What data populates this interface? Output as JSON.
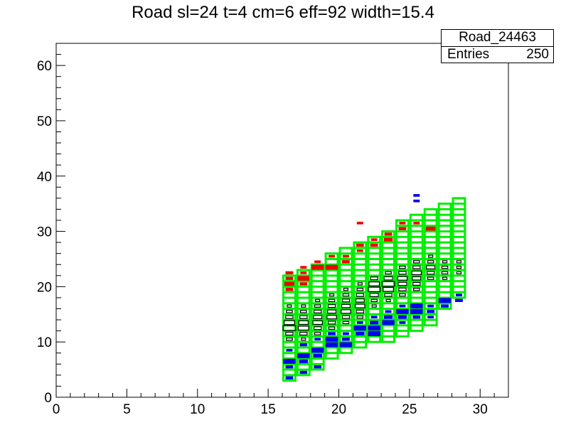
{
  "title": "Road sl=24 t=4 cm=6 eff=92 width=15.4",
  "stats": {
    "name": "Road_24463",
    "entries_label": "Entries",
    "entries_value": "250"
  },
  "colors": {
    "frame": "#000000",
    "road": "#00ee00",
    "hits": "#000000",
    "upper": "#ee0000",
    "lower": "#0000ee"
  },
  "chart_data": {
    "type": "heatmap",
    "title": "Road sl=24 t=4 cm=6 eff=92 width=15.4",
    "xlim": [
      0,
      32
    ],
    "ylim": [
      0,
      64
    ],
    "x_ticks": [
      0,
      5,
      10,
      15,
      20,
      25,
      30
    ],
    "y_ticks": [
      0,
      10,
      20,
      30,
      40,
      50,
      60
    ],
    "x_tick_labels": [
      "0",
      "5",
      "10",
      "15",
      "20",
      "25",
      "30"
    ],
    "y_tick_labels": [
      "0",
      "10",
      "20",
      "30",
      "40",
      "50",
      "60"
    ],
    "grid": false,
    "legend": "top-right stats box",
    "road_layers": [
      {
        "x": 16,
        "y_min": 3,
        "y_max": 22
      },
      {
        "x": 17,
        "y_min": 4,
        "y_max": 23
      },
      {
        "x": 18,
        "y_min": 5,
        "y_max": 24
      },
      {
        "x": 19,
        "y_min": 7,
        "y_max": 26
      },
      {
        "x": 20,
        "y_min": 8,
        "y_max": 27
      },
      {
        "x": 21,
        "y_min": 9,
        "y_max": 28
      },
      {
        "x": 22,
        "y_min": 10,
        "y_max": 29
      },
      {
        "x": 23,
        "y_min": 10,
        "y_max": 30
      },
      {
        "x": 24,
        "y_min": 11,
        "y_max": 32
      },
      {
        "x": 25,
        "y_min": 12,
        "y_max": 33
      },
      {
        "x": 26,
        "y_min": 13,
        "y_max": 34
      },
      {
        "x": 27,
        "y_min": 16,
        "y_max": 35
      },
      {
        "x": 28,
        "y_min": 18,
        "y_max": 36
      }
    ],
    "series": [
      {
        "color": "black",
        "values": [
          [
            16,
            12,
            9
          ],
          [
            16,
            13,
            6
          ],
          [
            16,
            14,
            3
          ],
          [
            16,
            11,
            3
          ],
          [
            16,
            15,
            2
          ],
          [
            16,
            10,
            2
          ],
          [
            16,
            16,
            1
          ],
          [
            17,
            12,
            6
          ],
          [
            17,
            13,
            5
          ],
          [
            17,
            14,
            3
          ],
          [
            17,
            11,
            3
          ],
          [
            17,
            15,
            2
          ],
          [
            17,
            10,
            1
          ],
          [
            17,
            16,
            1
          ],
          [
            18,
            13,
            5
          ],
          [
            18,
            14,
            4
          ],
          [
            18,
            12,
            3
          ],
          [
            18,
            15,
            3
          ],
          [
            18,
            16,
            2
          ],
          [
            18,
            11,
            2
          ],
          [
            18,
            17,
            1
          ],
          [
            19,
            14,
            5
          ],
          [
            19,
            15,
            4
          ],
          [
            19,
            13,
            3
          ],
          [
            19,
            16,
            3
          ],
          [
            19,
            17,
            2
          ],
          [
            19,
            12,
            2
          ],
          [
            19,
            18,
            1
          ],
          [
            20,
            15,
            5
          ],
          [
            20,
            16,
            4
          ],
          [
            20,
            14,
            3
          ],
          [
            20,
            17,
            3
          ],
          [
            20,
            18,
            2
          ],
          [
            20,
            13,
            2
          ],
          [
            20,
            19,
            1
          ],
          [
            21,
            16,
            5
          ],
          [
            21,
            17,
            4
          ],
          [
            21,
            15,
            3
          ],
          [
            21,
            18,
            3
          ],
          [
            21,
            19,
            2
          ],
          [
            21,
            14,
            2
          ],
          [
            21,
            20,
            1
          ],
          [
            22,
            19,
            8
          ],
          [
            22,
            20,
            6
          ],
          [
            22,
            18,
            4
          ],
          [
            22,
            21,
            3
          ],
          [
            22,
            17,
            2
          ],
          [
            22,
            16,
            1
          ],
          [
            23,
            20,
            9
          ],
          [
            23,
            19,
            6
          ],
          [
            23,
            21,
            4
          ],
          [
            23,
            18,
            3
          ],
          [
            23,
            22,
            2
          ],
          [
            23,
            17,
            1
          ],
          [
            24,
            21,
            5
          ],
          [
            24,
            20,
            4
          ],
          [
            24,
            22,
            3
          ],
          [
            24,
            19,
            3
          ],
          [
            24,
            23,
            2
          ],
          [
            24,
            18,
            2
          ],
          [
            25,
            22,
            5
          ],
          [
            25,
            21,
            4
          ],
          [
            25,
            23,
            3
          ],
          [
            25,
            20,
            3
          ],
          [
            25,
            24,
            2
          ],
          [
            25,
            19,
            2
          ],
          [
            26,
            23,
            4
          ],
          [
            26,
            22,
            3
          ],
          [
            26,
            24,
            2
          ],
          [
            26,
            21,
            2
          ],
          [
            26,
            25,
            1
          ],
          [
            27,
            22,
            2
          ],
          [
            27,
            23,
            2
          ],
          [
            27,
            24,
            1
          ],
          [
            27,
            21,
            1
          ],
          [
            28,
            23,
            1
          ],
          [
            28,
            24,
            1
          ],
          [
            28,
            22,
            1
          ]
        ]
      },
      {
        "color": "red",
        "values": [
          [
            16,
            22,
            3
          ],
          [
            16,
            21,
            3
          ],
          [
            16,
            20,
            5
          ],
          [
            16,
            19,
            3
          ],
          [
            17,
            23,
            2
          ],
          [
            17,
            22,
            2
          ],
          [
            17,
            21,
            7
          ],
          [
            17,
            20,
            3
          ],
          [
            18,
            23,
            8
          ],
          [
            18,
            24,
            2
          ],
          [
            19,
            23,
            8
          ],
          [
            19,
            25,
            2
          ],
          [
            20,
            24,
            3
          ],
          [
            20,
            25,
            2
          ],
          [
            21,
            26,
            2
          ],
          [
            21,
            27,
            3
          ],
          [
            21,
            31,
            2
          ],
          [
            22,
            27,
            3
          ],
          [
            22,
            28,
            2
          ],
          [
            23,
            28,
            4
          ],
          [
            23,
            29,
            3
          ],
          [
            24,
            30,
            3
          ],
          [
            24,
            31,
            2
          ],
          [
            25,
            31,
            2
          ],
          [
            26,
            30,
            5
          ]
        ]
      },
      {
        "color": "blue",
        "values": [
          [
            16,
            3,
            3
          ],
          [
            16,
            5,
            3
          ],
          [
            16,
            6,
            8
          ],
          [
            16,
            8,
            2
          ],
          [
            17,
            4,
            3
          ],
          [
            17,
            6,
            4
          ],
          [
            17,
            7,
            8
          ],
          [
            17,
            9,
            3
          ],
          [
            18,
            5,
            3
          ],
          [
            18,
            7,
            4
          ],
          [
            18,
            8,
            8
          ],
          [
            18,
            10,
            2
          ],
          [
            19,
            9,
            8
          ],
          [
            19,
            10,
            8
          ],
          [
            19,
            11,
            3
          ],
          [
            20,
            9,
            8
          ],
          [
            20,
            10,
            3
          ],
          [
            20,
            11,
            2
          ],
          [
            21,
            11,
            4
          ],
          [
            21,
            12,
            8
          ],
          [
            21,
            13,
            2
          ],
          [
            22,
            11,
            8
          ],
          [
            22,
            12,
            8
          ],
          [
            22,
            13,
            4
          ],
          [
            22,
            14,
            2
          ],
          [
            23,
            13,
            8
          ],
          [
            23,
            14,
            4
          ],
          [
            23,
            15,
            2
          ],
          [
            24,
            13,
            2
          ],
          [
            24,
            14,
            4
          ],
          [
            24,
            15,
            8
          ],
          [
            24,
            16,
            2
          ],
          [
            25,
            14,
            3
          ],
          [
            25,
            15,
            8
          ],
          [
            25,
            16,
            8
          ],
          [
            25,
            35,
            2
          ],
          [
            25,
            36,
            2
          ],
          [
            26,
            14,
            2
          ],
          [
            26,
            15,
            3
          ],
          [
            26,
            16,
            2
          ],
          [
            27,
            16,
            3
          ],
          [
            27,
            17,
            8
          ],
          [
            28,
            17,
            3
          ],
          [
            28,
            18,
            2
          ]
        ]
      }
    ]
  }
}
